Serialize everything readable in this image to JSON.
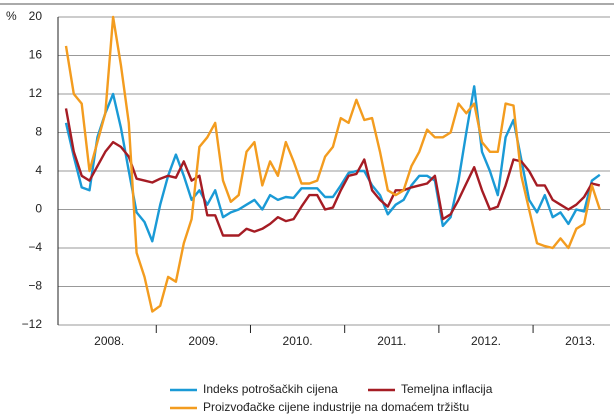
{
  "chart_data": {
    "type": "line",
    "y_unit": "%",
    "categories": [
      null,
      null,
      null,
      null,
      null,
      null,
      null,
      null,
      null,
      null,
      null,
      null,
      null,
      null,
      null,
      null,
      null,
      null,
      null,
      null,
      null,
      null,
      null,
      null,
      null,
      null,
      null,
      null,
      null,
      null,
      null,
      null,
      null,
      null,
      null,
      null,
      null,
      null,
      null,
      null,
      null,
      null,
      null,
      null,
      null,
      null,
      null,
      null,
      null,
      null,
      null,
      null,
      null,
      null,
      null,
      null,
      null,
      null,
      null,
      null,
      null,
      null,
      null,
      null,
      null,
      null,
      null,
      null,
      null
    ],
    "year_labels": [
      "2008.",
      "2009.",
      "2010.",
      "2011.",
      "2012.",
      "2013."
    ],
    "ylim": [
      -12,
      20
    ],
    "yticks": [
      {
        "value": -12,
        "label": "−12"
      },
      {
        "value": -8,
        "label": "−8"
      },
      {
        "value": -4,
        "label": "−4"
      },
      0,
      4,
      8,
      12,
      16,
      20
    ],
    "grid": true,
    "legend": "bottom",
    "series": [
      {
        "name": "Indeks potrošačkih cijena",
        "color": "#1a9ad6",
        "values": [
          9,
          5.5,
          2.3,
          2,
          7.5,
          10,
          12,
          8.5,
          4,
          -0.3,
          -1.3,
          -3.3,
          0.5,
          3.5,
          5.7,
          3.5,
          1,
          2,
          0.5,
          2,
          -0.8,
          -0.3,
          0,
          0.5,
          1,
          0,
          1.5,
          1,
          1.3,
          1.2,
          2.2,
          2.2,
          2.2,
          1.3,
          1.3,
          2.5,
          3.8,
          4,
          4,
          2.5,
          1.5,
          -0.5,
          0.5,
          1,
          2.5,
          3.5,
          3.5,
          3,
          -1.7,
          -0.8,
          3,
          8,
          12.8,
          6,
          4,
          1.5,
          7.5,
          9.3,
          5.2,
          1,
          -0.3,
          1.5,
          -0.8,
          -0.3,
          -1.5,
          0,
          -0.2,
          3,
          3.6
        ]
      },
      {
        "name": "Temeljna inflacija",
        "color": "#a51c24",
        "values": [
          10.5,
          6,
          3.5,
          3,
          4.5,
          6,
          7,
          6.5,
          5.5,
          3.2,
          3,
          2.8,
          3.2,
          3.5,
          3.3,
          5,
          3,
          3.5,
          -0.6,
          -0.6,
          -2.7,
          -2.7,
          -2.7,
          -2,
          -2.3,
          -2,
          -1.5,
          -0.8,
          -1.2,
          -1,
          0.3,
          1.5,
          1.5,
          0,
          0.2,
          2,
          3.5,
          3.7,
          5.2,
          2,
          1,
          0.3,
          2,
          2,
          2.3,
          2.5,
          2.7,
          3.5,
          -1,
          -0.5,
          1,
          2.7,
          4.4,
          2,
          0,
          0.3,
          2.5,
          5.2,
          5,
          4,
          2.5,
          2.5,
          1,
          0.5,
          0,
          0.5,
          1.3,
          2.7,
          2.5
        ]
      },
      {
        "name": "Proizvođačke cijene industrije na domaćem tržištu",
        "color": "#f39c1f",
        "values": [
          17,
          12,
          11,
          4,
          7,
          10,
          20,
          15,
          9,
          -4.5,
          -7,
          -10.6,
          -10,
          -7,
          -7.5,
          -3.5,
          -1,
          6.5,
          7.5,
          9,
          3,
          0.8,
          1.5,
          6,
          7,
          2.5,
          5,
          3.5,
          7,
          5,
          2.7,
          2.7,
          3,
          5.5,
          6.5,
          9.5,
          9,
          11.4,
          9.3,
          9.5,
          6,
          2,
          1.5,
          2,
          4.5,
          6,
          8.3,
          7.5,
          7.5,
          8,
          11,
          10,
          11,
          7,
          6,
          6,
          11,
          10.8,
          3.5,
          0,
          -3.5,
          -3.8,
          -4,
          -3,
          -4,
          -2,
          -1.5,
          2.5,
          0
        ]
      }
    ]
  }
}
